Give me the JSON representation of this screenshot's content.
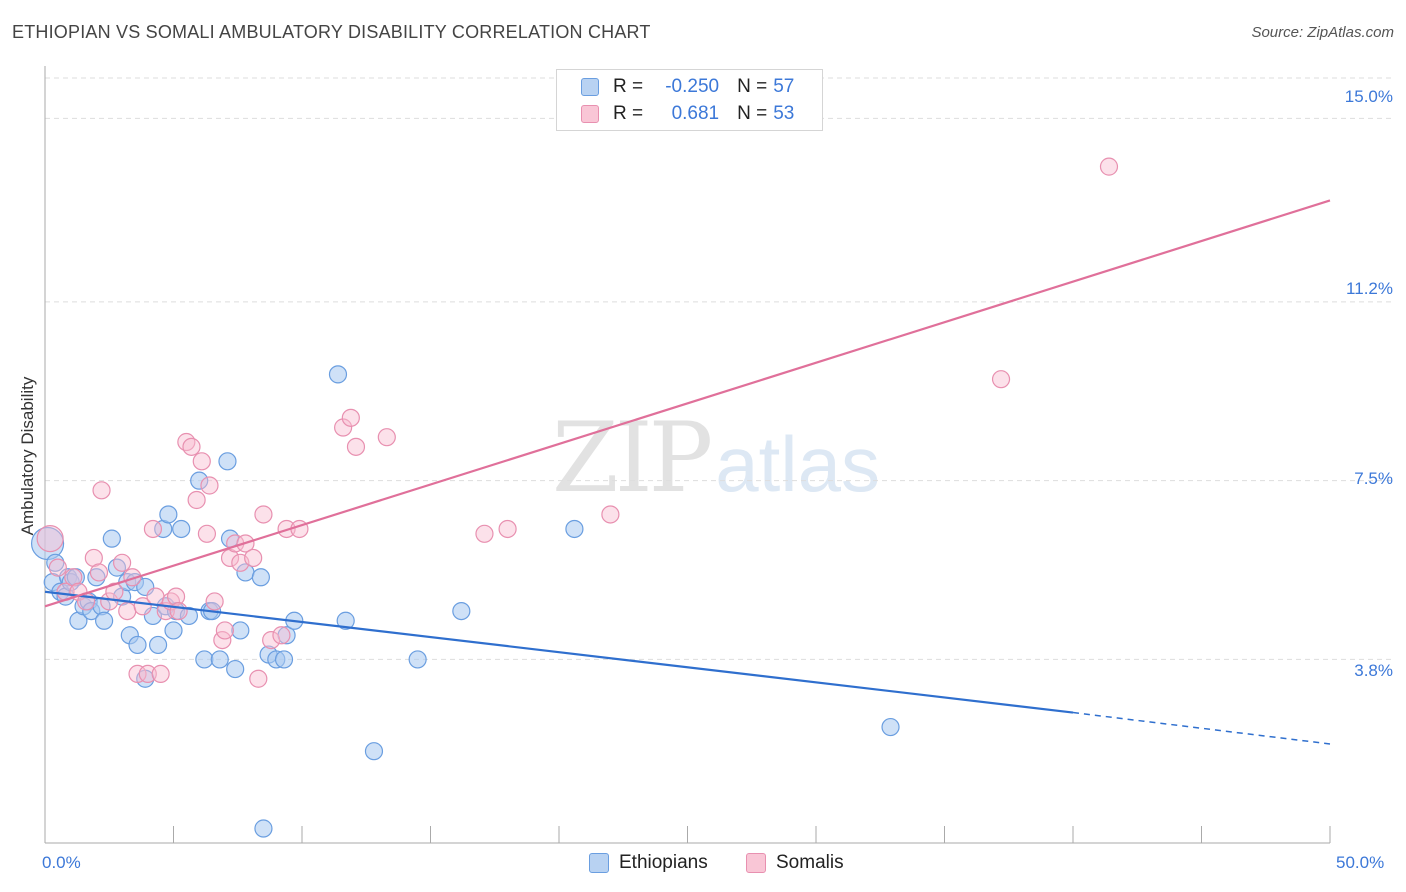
{
  "header": {
    "title": "ETHIOPIAN VS SOMALI AMBULATORY DISABILITY CORRELATION CHART",
    "source": "Source: ZipAtlas.com"
  },
  "watermark": {
    "zip": "ZIP",
    "atlas": "atlas"
  },
  "legend": {
    "series": [
      {
        "r_label": "R =",
        "r_value": "-0.250",
        "n_label": "N =",
        "n_value": "57"
      },
      {
        "r_label": "R =",
        "r_value": "0.681",
        "n_label": "N =",
        "n_value": "53"
      }
    ]
  },
  "bottom_legend": {
    "ethiopians": "Ethiopians",
    "somalis": "Somalis"
  },
  "colors": {
    "ethiopians_fill": "#a8c8f0",
    "ethiopians_stroke": "#6a9ee0",
    "ethiopians_line": "#2f6fce",
    "somalis_fill": "#f8bcd0",
    "somalis_stroke": "#e890b0",
    "somalis_line": "#e0709a",
    "tick_text": "#3c78d8",
    "grid": "#dddddd"
  },
  "chart_data": {
    "type": "scatter",
    "title": "ETHIOPIAN VS SOMALI AMBULATORY DISABILITY CORRELATION CHART",
    "xlabel": "",
    "ylabel": "Ambulatory Disability",
    "xlim": [
      0,
      50
    ],
    "ylim": [
      0,
      16.0
    ],
    "x_tick_labels": [
      "0.0%",
      "50.0%"
    ],
    "y_ticks": [
      3.8,
      7.5,
      11.2,
      15.0
    ],
    "y_tick_labels": [
      "3.8%",
      "7.5%",
      "11.2%",
      "15.0%"
    ],
    "grid": true,
    "series": [
      {
        "name": "Ethiopians",
        "r": -0.25,
        "n": 57,
        "trend": {
          "x0": 0,
          "y0": 5.2,
          "x1": 40,
          "y1": 2.7,
          "x_dash_end": 50,
          "y_dash_end": 2.05
        },
        "points": [
          [
            0.1,
            6.2
          ],
          [
            0.4,
            5.8
          ],
          [
            0.3,
            5.4
          ],
          [
            0.6,
            5.2
          ],
          [
            0.8,
            5.1
          ],
          [
            0.9,
            5.5
          ],
          [
            1.0,
            5.4
          ],
          [
            1.2,
            5.5
          ],
          [
            1.3,
            4.6
          ],
          [
            1.5,
            4.9
          ],
          [
            1.7,
            5.0
          ],
          [
            1.8,
            4.8
          ],
          [
            2.0,
            5.5
          ],
          [
            2.2,
            4.9
          ],
          [
            2.3,
            4.6
          ],
          [
            2.6,
            6.3
          ],
          [
            2.8,
            5.7
          ],
          [
            3.0,
            5.1
          ],
          [
            3.2,
            5.4
          ],
          [
            3.3,
            4.3
          ],
          [
            3.5,
            5.4
          ],
          [
            3.6,
            4.1
          ],
          [
            3.9,
            5.3
          ],
          [
            3.9,
            3.4
          ],
          [
            4.2,
            4.7
          ],
          [
            4.4,
            4.1
          ],
          [
            4.6,
            6.5
          ],
          [
            4.7,
            4.9
          ],
          [
            4.8,
            6.8
          ],
          [
            5.0,
            4.4
          ],
          [
            5.1,
            4.8
          ],
          [
            5.3,
            6.5
          ],
          [
            5.6,
            4.7
          ],
          [
            6.0,
            7.5
          ],
          [
            6.2,
            3.8
          ],
          [
            6.4,
            4.8
          ],
          [
            6.5,
            4.8
          ],
          [
            6.8,
            3.8
          ],
          [
            7.1,
            7.9
          ],
          [
            7.2,
            6.3
          ],
          [
            7.4,
            3.6
          ],
          [
            7.6,
            4.4
          ],
          [
            7.8,
            5.6
          ],
          [
            8.4,
            5.5
          ],
          [
            8.5,
            0.3
          ],
          [
            8.7,
            3.9
          ],
          [
            9.0,
            3.8
          ],
          [
            9.3,
            3.8
          ],
          [
            9.4,
            4.3
          ],
          [
            9.7,
            4.6
          ],
          [
            11.4,
            9.7
          ],
          [
            11.7,
            4.6
          ],
          [
            12.8,
            1.9
          ],
          [
            14.5,
            3.8
          ],
          [
            16.2,
            4.8
          ],
          [
            20.6,
            6.5
          ],
          [
            32.9,
            2.4
          ]
        ]
      },
      {
        "name": "Somalis",
        "r": 0.681,
        "n": 53,
        "trend": {
          "x0": 0,
          "y0": 4.9,
          "x1": 50,
          "y1": 13.3
        },
        "points": [
          [
            0.2,
            6.3
          ],
          [
            0.5,
            5.7
          ],
          [
            0.8,
            5.2
          ],
          [
            1.1,
            5.5
          ],
          [
            1.3,
            5.2
          ],
          [
            1.6,
            5.0
          ],
          [
            1.9,
            5.9
          ],
          [
            2.1,
            5.6
          ],
          [
            2.2,
            7.3
          ],
          [
            2.5,
            5.0
          ],
          [
            2.7,
            5.2
          ],
          [
            3.0,
            5.8
          ],
          [
            3.2,
            4.8
          ],
          [
            3.4,
            5.5
          ],
          [
            3.6,
            3.5
          ],
          [
            3.8,
            4.9
          ],
          [
            4.0,
            3.5
          ],
          [
            4.2,
            6.5
          ],
          [
            4.3,
            5.1
          ],
          [
            4.5,
            3.5
          ],
          [
            4.7,
            4.8
          ],
          [
            4.9,
            5.0
          ],
          [
            5.1,
            5.1
          ],
          [
            5.2,
            4.8
          ],
          [
            5.5,
            8.3
          ],
          [
            5.7,
            8.2
          ],
          [
            5.9,
            7.1
          ],
          [
            6.1,
            7.9
          ],
          [
            6.3,
            6.4
          ],
          [
            6.4,
            7.4
          ],
          [
            6.6,
            5.0
          ],
          [
            6.9,
            4.2
          ],
          [
            7.0,
            4.4
          ],
          [
            7.2,
            5.9
          ],
          [
            7.4,
            6.2
          ],
          [
            7.6,
            5.8
          ],
          [
            7.8,
            6.2
          ],
          [
            8.1,
            5.9
          ],
          [
            8.3,
            3.4
          ],
          [
            8.5,
            6.8
          ],
          [
            8.8,
            4.2
          ],
          [
            9.2,
            4.3
          ],
          [
            9.4,
            6.5
          ],
          [
            9.9,
            6.5
          ],
          [
            11.6,
            8.6
          ],
          [
            11.9,
            8.8
          ],
          [
            12.1,
            8.2
          ],
          [
            13.3,
            8.4
          ],
          [
            17.1,
            6.4
          ],
          [
            18.0,
            6.5
          ],
          [
            22.0,
            6.8
          ],
          [
            37.2,
            9.6
          ],
          [
            41.4,
            14.0
          ]
        ]
      }
    ]
  }
}
